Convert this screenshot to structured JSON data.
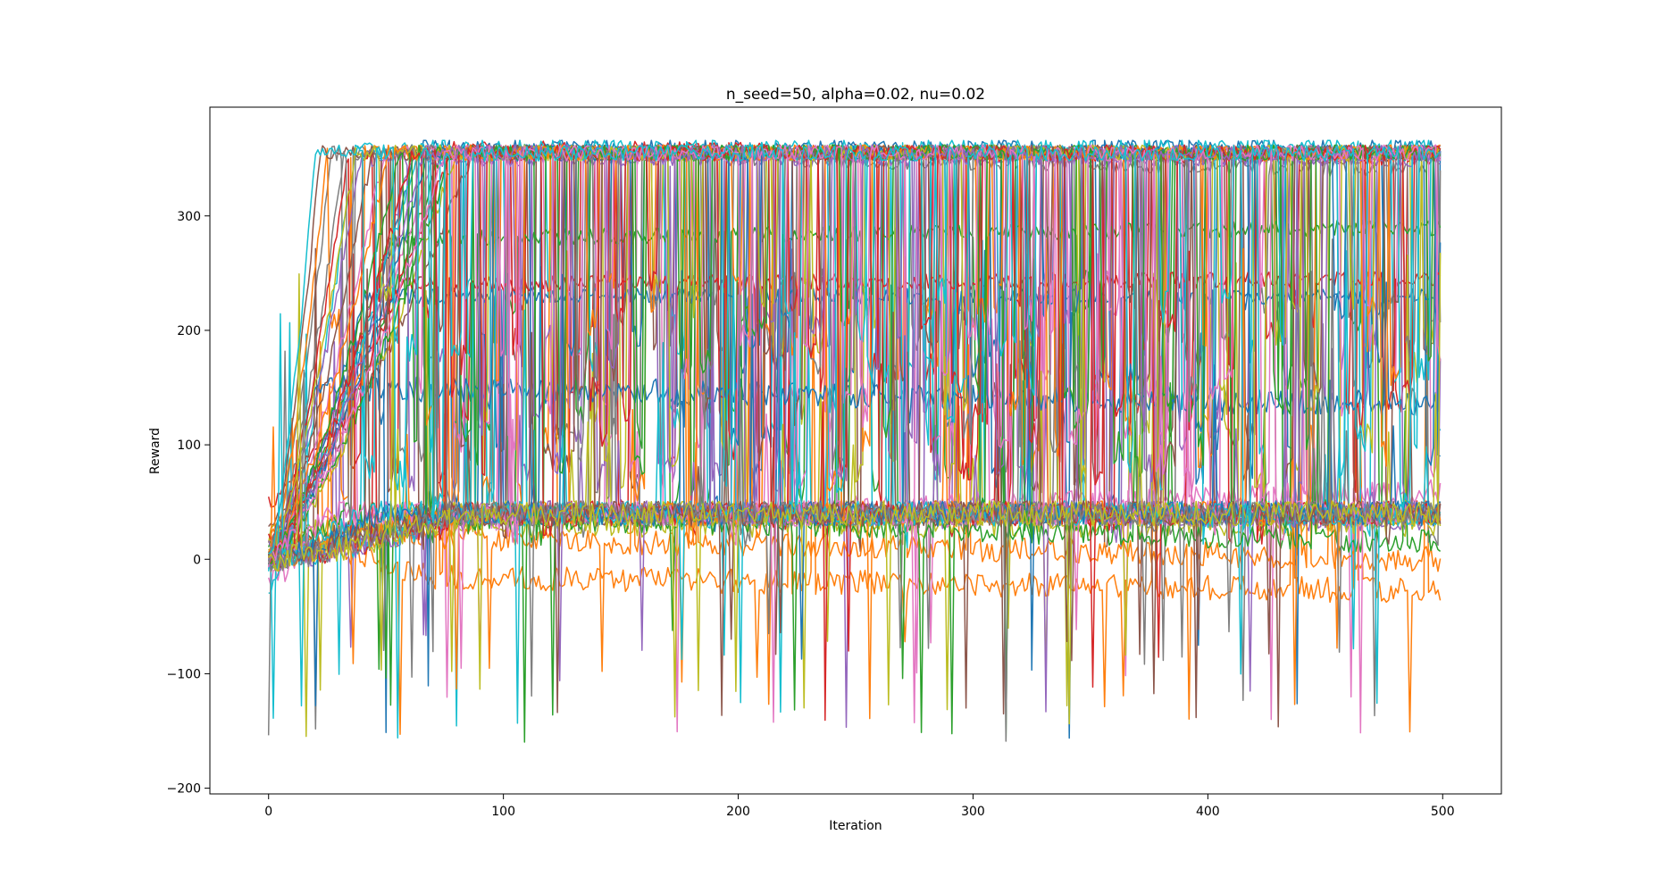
{
  "chart_data": {
    "type": "line",
    "title": "n_seed=50, alpha=0.02, nu=0.02",
    "xlabel": "Iteration",
    "ylabel": "Reward",
    "xlim": [
      -25,
      525
    ],
    "ylim": [
      -205,
      395
    ],
    "x_ticks": [
      0,
      100,
      200,
      300,
      400,
      500
    ],
    "y_ticks": [
      -200,
      -100,
      0,
      100,
      200,
      300
    ],
    "x_tick_labels": [
      "0",
      "100",
      "200",
      "300",
      "400",
      "500"
    ],
    "y_tick_labels": [
      "−200",
      "−100",
      "0",
      "100",
      "200",
      "300"
    ],
    "grid": false,
    "legend": "none",
    "n_points_per_series": 500,
    "x": {
      "start": 0,
      "end": 499,
      "step": 1
    },
    "color_cycle": [
      "#1f77b4",
      "#ff7f0e",
      "#2ca02c",
      "#d62728",
      "#9467bd",
      "#8c564b",
      "#e377c2",
      "#7f7f7f",
      "#bcbd22",
      "#17becf"
    ],
    "series": [
      {
        "color": "#1f77b4",
        "values_summary": {
          "start": -10,
          "plateau": 360,
          "end": 360
        }
      },
      {
        "color": "#ff7f0e",
        "values_summary": {
          "start": 20,
          "plateau": -15,
          "end": -28
        }
      },
      {
        "color": "#2ca02c",
        "values_summary": {
          "start": 10,
          "plateau": 355,
          "end": 355
        }
      },
      {
        "color": "#d62728",
        "values_summary": {
          "start": 50,
          "plateau": 360,
          "end": 350
        }
      },
      {
        "color": "#9467bd",
        "values_summary": {
          "start": 0,
          "plateau": 40,
          "end": 35
        }
      },
      {
        "color": "#8c564b",
        "values_summary": {
          "start": 30,
          "plateau": 355,
          "end": 355
        }
      },
      {
        "color": "#e377c2",
        "values_summary": {
          "start": -20,
          "plateau": 30,
          "end": 60
        }
      },
      {
        "color": "#7f7f7f",
        "values_summary": {
          "start": 0,
          "plateau": 355,
          "end": 340
        }
      },
      {
        "color": "#bcbd22",
        "values_summary": {
          "start": 20,
          "plateau": 30,
          "end": 30
        }
      },
      {
        "color": "#17becf",
        "values_summary": {
          "start": -30,
          "plateau": 360,
          "end": 360
        }
      },
      {
        "color": "#1f77b4",
        "values_summary": {
          "start": 0,
          "plateau": 230,
          "end": 230
        }
      },
      {
        "color": "#ff7f0e",
        "values_summary": {
          "start": 10,
          "plateau": 20,
          "end": 0
        }
      },
      {
        "color": "#2ca02c",
        "values_summary": {
          "start": 0,
          "plateau": 280,
          "end": 290
        }
      },
      {
        "color": "#d62728",
        "values_summary": {
          "start": 20,
          "plateau": 240,
          "end": 245
        }
      },
      {
        "color": "#9467bd",
        "values_summary": {
          "start": 10,
          "plateau": 350,
          "end": 350
        }
      },
      {
        "color": "#8c564b",
        "values_summary": {
          "start": 10,
          "plateau": 40,
          "end": 40
        }
      },
      {
        "color": "#e377c2",
        "values_summary": {
          "start": 0,
          "plateau": 355,
          "end": 355
        }
      },
      {
        "color": "#7f7f7f",
        "values_summary": {
          "start": 10,
          "plateau": 40,
          "end": 40
        }
      },
      {
        "color": "#bcbd22",
        "values_summary": {
          "start": 0,
          "plateau": 355,
          "end": 355
        }
      },
      {
        "color": "#17becf",
        "values_summary": {
          "start": 0,
          "plateau": 40,
          "end": 40
        }
      },
      {
        "color": "#1f77b4",
        "values_summary": {
          "start": 0,
          "plateau": 150,
          "end": 135
        }
      },
      {
        "color": "#ff7f0e",
        "values_summary": {
          "start": 0,
          "plateau": 355,
          "end": 355
        }
      },
      {
        "color": "#2ca02c",
        "values_summary": {
          "start": 0,
          "plateau": 40,
          "end": 15
        }
      },
      {
        "color": "#d62728",
        "values_summary": {
          "start": 0,
          "plateau": 355,
          "end": 355
        }
      },
      {
        "color": "#9467bd",
        "values_summary": {
          "start": 0,
          "plateau": 350,
          "end": 350
        }
      },
      {
        "color": "#8c564b",
        "values_summary": {
          "start": 0,
          "plateau": 355,
          "end": 355
        }
      },
      {
        "color": "#e377c2",
        "values_summary": {
          "start": 0,
          "plateau": 355,
          "end": 355
        }
      },
      {
        "color": "#7f7f7f",
        "values_summary": {
          "start": 0,
          "plateau": 40,
          "end": 40
        }
      },
      {
        "color": "#bcbd22",
        "values_summary": {
          "start": 0,
          "plateau": 40,
          "end": 40
        }
      },
      {
        "color": "#17becf",
        "values_summary": {
          "start": 0,
          "plateau": 355,
          "end": 355
        }
      },
      {
        "color": "#1f77b4",
        "values_summary": {
          "start": 0,
          "plateau": 355,
          "end": 355
        }
      },
      {
        "color": "#ff7f0e",
        "values_summary": {
          "start": 0,
          "plateau": 40,
          "end": 40
        }
      },
      {
        "color": "#2ca02c",
        "values_summary": {
          "start": 0,
          "plateau": 355,
          "end": 355
        }
      },
      {
        "color": "#d62728",
        "values_summary": {
          "start": 0,
          "plateau": 40,
          "end": 40
        }
      },
      {
        "color": "#9467bd",
        "values_summary": {
          "start": 0,
          "plateau": 40,
          "end": 40
        }
      },
      {
        "color": "#8c564b",
        "values_summary": {
          "start": 0,
          "plateau": 355,
          "end": 355
        }
      },
      {
        "color": "#e377c2",
        "values_summary": {
          "start": 0,
          "plateau": 40,
          "end": 40
        }
      },
      {
        "color": "#7f7f7f",
        "values_summary": {
          "start": 0,
          "plateau": 355,
          "end": 355
        }
      },
      {
        "color": "#bcbd22",
        "values_summary": {
          "start": 0,
          "plateau": 355,
          "end": 355
        }
      },
      {
        "color": "#17becf",
        "values_summary": {
          "start": 0,
          "plateau": 40,
          "end": 40
        }
      },
      {
        "color": "#1f77b4",
        "values_summary": {
          "start": 0,
          "plateau": 40,
          "end": 40
        }
      },
      {
        "color": "#ff7f0e",
        "values_summary": {
          "start": 0,
          "plateau": 355,
          "end": 355
        }
      },
      {
        "color": "#2ca02c",
        "values_summary": {
          "start": 0,
          "plateau": 355,
          "end": 355
        }
      },
      {
        "color": "#d62728",
        "values_summary": {
          "start": 0,
          "plateau": 355,
          "end": 355
        }
      },
      {
        "color": "#9467bd",
        "values_summary": {
          "start": 0,
          "plateau": 355,
          "end": 355
        }
      },
      {
        "color": "#8c564b",
        "values_summary": {
          "start": 0,
          "plateau": 40,
          "end": 40
        }
      },
      {
        "color": "#e377c2",
        "values_summary": {
          "start": 0,
          "plateau": 355,
          "end": 355
        }
      },
      {
        "color": "#7f7f7f",
        "values_summary": {
          "start": 0,
          "plateau": 40,
          "end": 40
        }
      },
      {
        "color": "#bcbd22",
        "values_summary": {
          "start": 0,
          "plateau": 40,
          "end": 40
        }
      },
      {
        "color": "#17becf",
        "values_summary": {
          "start": 0,
          "plateau": 355,
          "end": 355
        }
      }
    ]
  }
}
